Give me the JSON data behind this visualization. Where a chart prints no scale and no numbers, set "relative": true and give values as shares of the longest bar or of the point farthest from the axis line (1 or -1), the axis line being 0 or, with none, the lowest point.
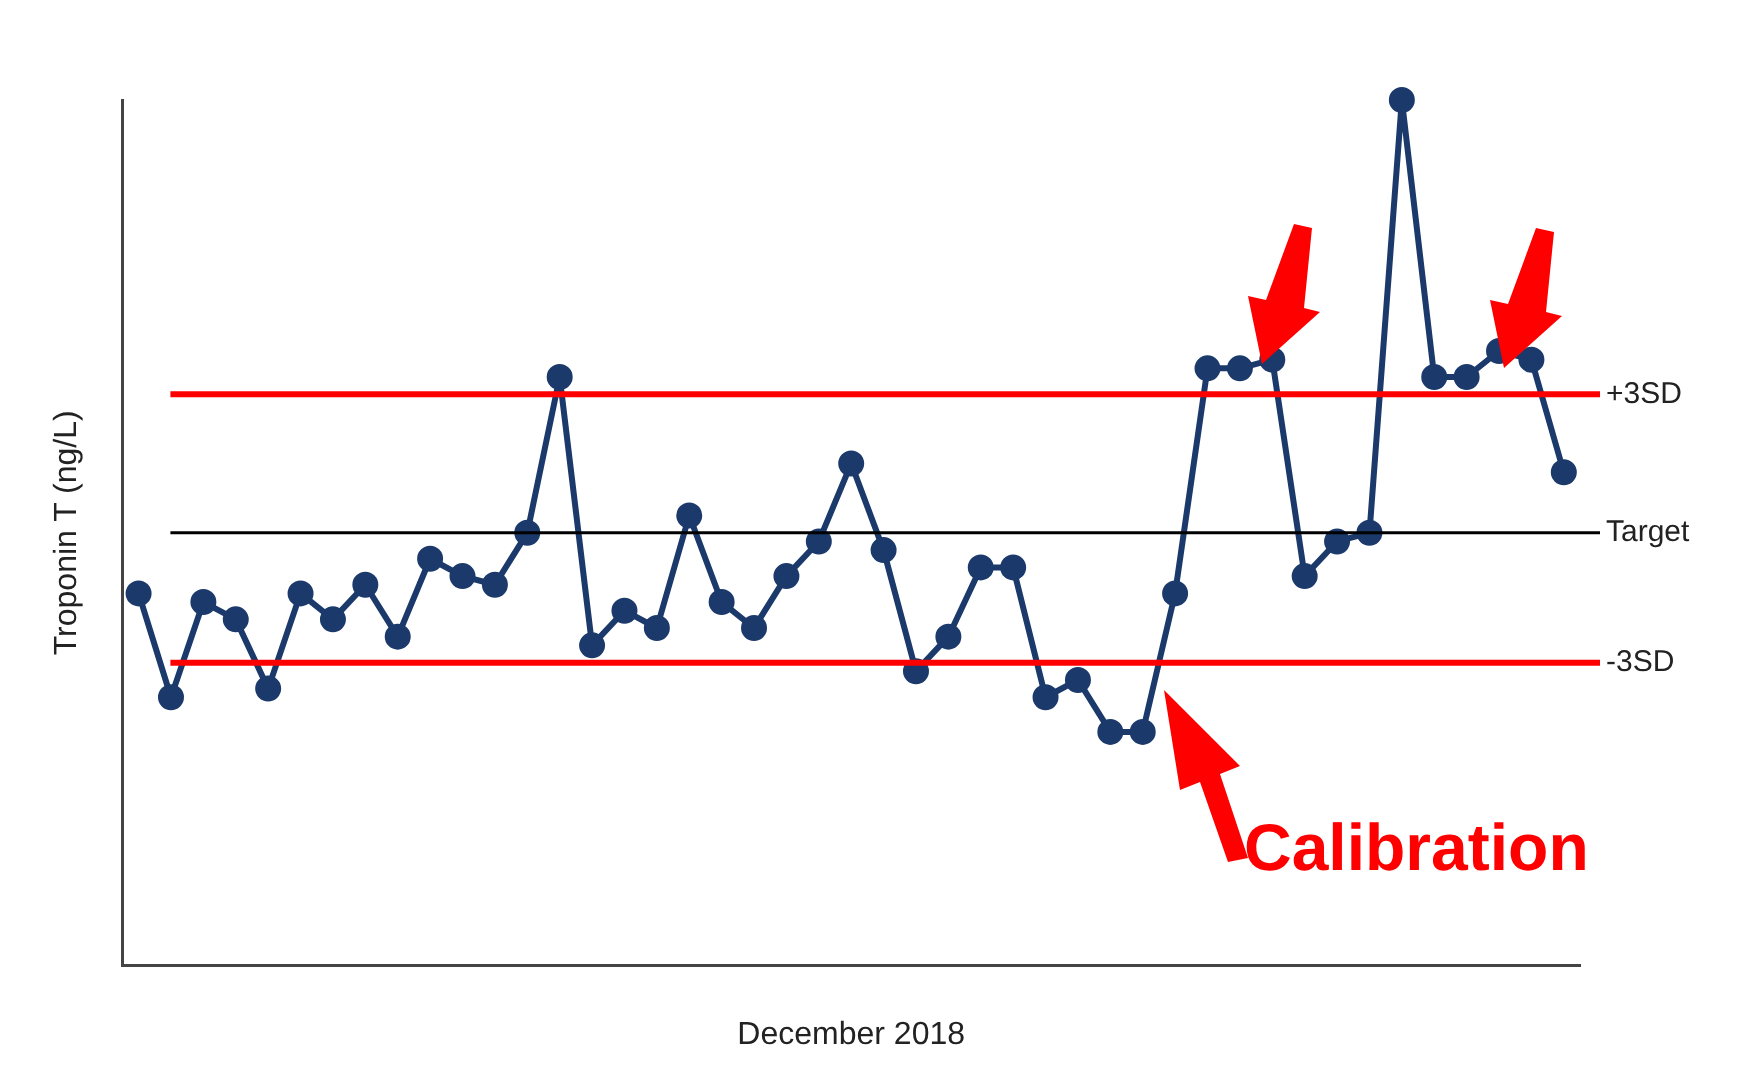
{
  "chart_data": {
    "type": "line",
    "relative": true,
    "xlabel": "December 2018",
    "ylabel": "Troponin T (ng/L)",
    "marker": "circle",
    "line_style": "solid",
    "grid": false,
    "legend": false,
    "categories": [
      null,
      null,
      null,
      null,
      null,
      null,
      null,
      null,
      null,
      null,
      null,
      null,
      null,
      null,
      null,
      null,
      null,
      null,
      null,
      null,
      null,
      null,
      null,
      null,
      null,
      null,
      null,
      null,
      null,
      null,
      null,
      null,
      null,
      null,
      null,
      null,
      null,
      null,
      null,
      null,
      null,
      null,
      null,
      null,
      null
    ],
    "series": [
      {
        "color": "#1b3a6b",
        "values": [
          0.43,
          0.31,
          0.42,
          0.4,
          0.32,
          0.43,
          0.4,
          0.44,
          0.38,
          0.47,
          0.45,
          0.44,
          0.5,
          0.68,
          0.37,
          0.41,
          0.39,
          0.52,
          0.42,
          0.39,
          0.45,
          0.49,
          0.58,
          0.48,
          0.34,
          0.38,
          0.46,
          0.46,
          0.31,
          0.33,
          0.27,
          0.27,
          0.43,
          0.69,
          0.69,
          0.7,
          0.45,
          0.49,
          0.5,
          1,
          0.68,
          0.68,
          0.71,
          0.7,
          0.57
        ]
      }
    ],
    "ref_lines": [
      {
        "axis": "y",
        "value": 0.66,
        "label": "+3SD",
        "color": "#ff0000"
      },
      {
        "axis": "y",
        "value": 0.5,
        "label": "Target",
        "color": "#000000"
      },
      {
        "axis": "y",
        "value": 0.35,
        "label": "-3SD",
        "color": "#ff0000"
      }
    ],
    "annotations": [
      "Calibration"
    ]
  }
}
